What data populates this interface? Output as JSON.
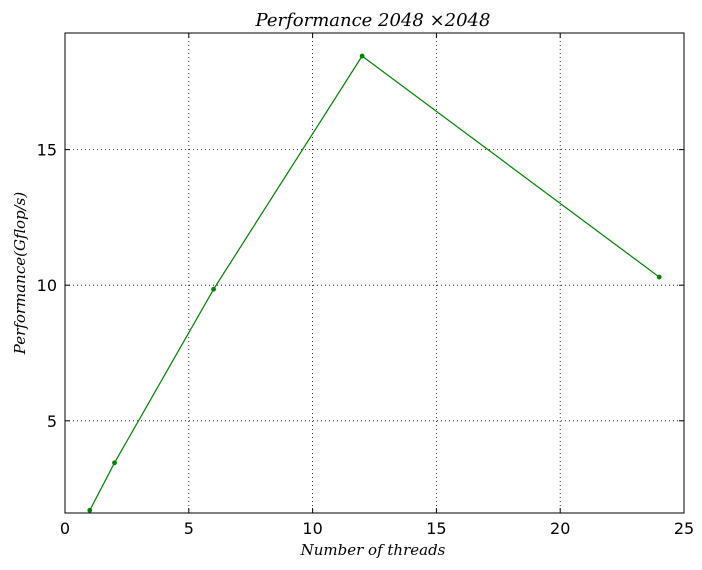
{
  "chart_data": {
    "type": "line",
    "title": "Performance 2048 ×2048",
    "xlabel": "Number of threads",
    "ylabel": "Performance(Gflop/s)",
    "xlim": [
      0,
      25
    ],
    "ylim": [
      1.6,
      19.3
    ],
    "xticks": [
      0,
      5,
      10,
      15,
      20,
      25
    ],
    "yticks": [
      5,
      10,
      15
    ],
    "grid": true,
    "series": [
      {
        "color": "#008000",
        "x": [
          1,
          2,
          6,
          12,
          24
        ],
        "y": [
          1.7,
          3.45,
          9.85,
          18.45,
          10.3
        ]
      }
    ]
  }
}
